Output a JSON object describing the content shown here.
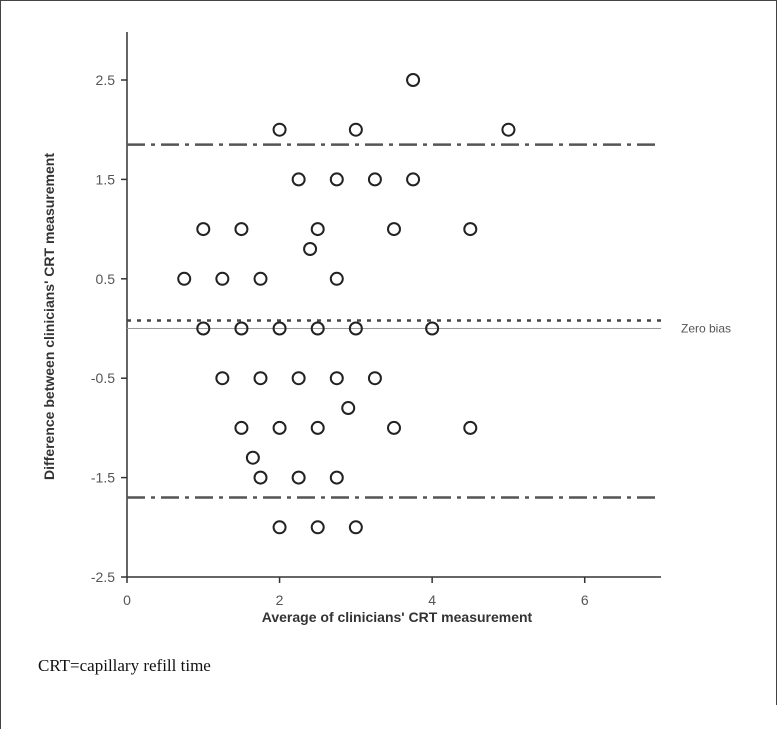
{
  "chart_data": {
    "type": "scatter",
    "xlabel": "Average of clinicians' CRT measurement",
    "ylabel": "Difference between clinicians' CRT measurement",
    "xlim": [
      0,
      7
    ],
    "ylim": [
      -2.5,
      3
    ],
    "x_ticks": [
      0,
      2,
      4,
      6
    ],
    "y_ticks": [
      -2.5,
      -1.5,
      -0.5,
      0.5,
      1.5,
      2.5
    ],
    "x_tick_labels": [
      "0",
      "2",
      "4",
      "6"
    ],
    "y_tick_labels": [
      "-2.5",
      "-1.5",
      "-0.5",
      "0.5",
      "1.5",
      "2.5"
    ],
    "grid": false,
    "points": [
      {
        "x": 3.75,
        "y": 2.5
      },
      {
        "x": 2.0,
        "y": 2.0
      },
      {
        "x": 3.0,
        "y": 2.0
      },
      {
        "x": 5.0,
        "y": 2.0
      },
      {
        "x": 2.25,
        "y": 1.5
      },
      {
        "x": 2.75,
        "y": 1.5
      },
      {
        "x": 3.25,
        "y": 1.5
      },
      {
        "x": 3.75,
        "y": 1.5
      },
      {
        "x": 1.0,
        "y": 1.0
      },
      {
        "x": 1.5,
        "y": 1.0
      },
      {
        "x": 2.5,
        "y": 1.0
      },
      {
        "x": 3.5,
        "y": 1.0
      },
      {
        "x": 4.5,
        "y": 1.0
      },
      {
        "x": 2.4,
        "y": 0.8
      },
      {
        "x": 0.75,
        "y": 0.5
      },
      {
        "x": 1.25,
        "y": 0.5
      },
      {
        "x": 1.75,
        "y": 0.5
      },
      {
        "x": 2.75,
        "y": 0.5
      },
      {
        "x": 1.0,
        "y": 0.0
      },
      {
        "x": 1.5,
        "y": 0.0
      },
      {
        "x": 2.0,
        "y": 0.0
      },
      {
        "x": 2.5,
        "y": 0.0
      },
      {
        "x": 3.0,
        "y": 0.0
      },
      {
        "x": 4.0,
        "y": 0.0
      },
      {
        "x": 1.25,
        "y": -0.5
      },
      {
        "x": 1.75,
        "y": -0.5
      },
      {
        "x": 2.25,
        "y": -0.5
      },
      {
        "x": 2.75,
        "y": -0.5
      },
      {
        "x": 3.25,
        "y": -0.5
      },
      {
        "x": 2.9,
        "y": -0.8
      },
      {
        "x": 1.5,
        "y": -1.0
      },
      {
        "x": 2.0,
        "y": -1.0
      },
      {
        "x": 2.5,
        "y": -1.0
      },
      {
        "x": 3.5,
        "y": -1.0
      },
      {
        "x": 4.5,
        "y": -1.0
      },
      {
        "x": 1.65,
        "y": -1.3
      },
      {
        "x": 1.75,
        "y": -1.5
      },
      {
        "x": 2.25,
        "y": -1.5
      },
      {
        "x": 2.75,
        "y": -1.5
      },
      {
        "x": 2.0,
        "y": -2.0
      },
      {
        "x": 2.5,
        "y": -2.0
      },
      {
        "x": 3.0,
        "y": -2.0
      }
    ],
    "reference_lines": [
      {
        "y": 1.85,
        "style": "dash-dot"
      },
      {
        "y": 0.08,
        "style": "dotted"
      },
      {
        "y": 0.0,
        "style": "solid"
      },
      {
        "y": -1.7,
        "style": "dash-dot"
      }
    ],
    "annotations": [
      {
        "text": "Zero bias",
        "y": 0.0
      }
    ]
  },
  "caption": "CRT=capillary refill time"
}
